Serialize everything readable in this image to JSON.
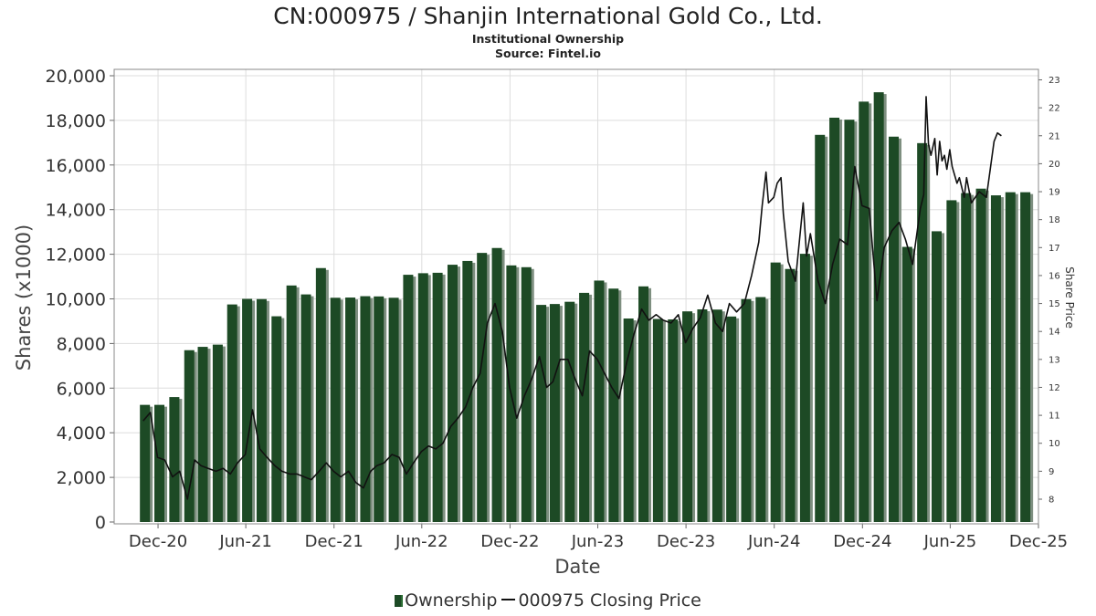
{
  "title": "CN:000975 / Shanjin International Gold Co., Ltd.",
  "subtitle": "Institutional Ownership",
  "source": "Source: Fintel.io",
  "legend": {
    "ownership": "Ownership",
    "price": "000975 Closing Price"
  },
  "colors": {
    "bar": "#1d4a25",
    "bar_shadow": "#7e8f80",
    "line": "#111111",
    "grid": "#dddddd"
  },
  "chart_data": {
    "type": "bar",
    "xlabel": "Date",
    "ylabel": "Shares (x1000)",
    "y2label": "Share Price",
    "ylim": [
      0,
      20000
    ],
    "y2lim": [
      7.2,
      23.2
    ],
    "yticks": [
      "0",
      "2,000",
      "4,000",
      "6,000",
      "8,000",
      "10,000",
      "12,000",
      "14,000",
      "16,000",
      "18,000",
      "20,000"
    ],
    "y2ticks": [
      "8",
      "9",
      "10",
      "11",
      "12",
      "13",
      "14",
      "15",
      "16",
      "17",
      "18",
      "19",
      "20",
      "21",
      "22",
      "23"
    ],
    "xlim": [
      "2020-09-01",
      "2025-12-01"
    ],
    "xticks": [
      {
        "label": "Dec-20",
        "date": "2020-12-01"
      },
      {
        "label": "Jun-21",
        "date": "2021-06-01"
      },
      {
        "label": "Dec-21",
        "date": "2021-12-01"
      },
      {
        "label": "Jun-22",
        "date": "2022-06-01"
      },
      {
        "label": "Dec-22",
        "date": "2022-12-01"
      },
      {
        "label": "Jun-23",
        "date": "2023-06-01"
      },
      {
        "label": "Dec-23",
        "date": "2023-12-01"
      },
      {
        "label": "Jun-24",
        "date": "2024-06-01"
      },
      {
        "label": "Dec-24",
        "date": "2024-12-01"
      },
      {
        "label": "Jun-25",
        "date": "2025-06-01"
      },
      {
        "label": "Dec-25",
        "date": "2025-12-01"
      }
    ],
    "series": [
      {
        "name": "Ownership",
        "type": "bar",
        "dates": [
          "2020-10-31",
          "2020-11-30",
          "2020-12-31",
          "2021-01-31",
          "2021-02-28",
          "2021-03-31",
          "2021-04-30",
          "2021-05-31",
          "2021-06-30",
          "2021-07-31",
          "2021-08-31",
          "2021-09-30",
          "2021-10-31",
          "2021-11-30",
          "2021-12-31",
          "2022-01-31",
          "2022-02-28",
          "2022-03-31",
          "2022-04-30",
          "2022-05-31",
          "2022-06-30",
          "2022-07-31",
          "2022-08-31",
          "2022-09-30",
          "2022-10-31",
          "2022-11-30",
          "2022-12-31",
          "2023-01-31",
          "2023-02-28",
          "2023-03-31",
          "2023-04-30",
          "2023-05-31",
          "2023-06-30",
          "2023-07-31",
          "2023-08-31",
          "2023-09-30",
          "2023-10-31",
          "2023-11-30",
          "2023-12-31",
          "2024-01-31",
          "2024-02-29",
          "2024-03-31",
          "2024-04-30",
          "2024-05-31",
          "2024-06-30",
          "2024-07-31",
          "2024-08-31",
          "2024-09-30",
          "2024-10-31",
          "2024-11-30",
          "2024-12-31",
          "2025-01-31",
          "2025-02-28",
          "2025-03-31",
          "2025-04-30",
          "2025-05-31",
          "2025-06-30",
          "2025-07-31",
          "2025-08-31",
          "2025-09-30",
          "2025-10-31"
        ],
        "values": [
          5250,
          5250,
          5600,
          7700,
          7850,
          7950,
          9750,
          10000,
          9990,
          9220,
          10600,
          10200,
          11380,
          10050,
          10060,
          10120,
          10110,
          10050,
          11080,
          11150,
          11170,
          11530,
          11700,
          12060,
          12280,
          11500,
          11420,
          9730,
          9770,
          9870,
          10270,
          10820,
          10460,
          9120,
          10560,
          9100,
          9080,
          9440,
          9530,
          9520,
          9210,
          9990,
          10080,
          11630,
          11340,
          12020,
          17350,
          18120,
          18030,
          18840,
          19260,
          17270,
          12330,
          16980,
          13030,
          14420,
          14740,
          14940,
          14640,
          14780,
          14780
        ]
      },
      {
        "name": "000975 Closing Price",
        "type": "line",
        "points": [
          [
            "2020-10-31",
            10.8
          ],
          [
            "2020-11-15",
            11.1
          ],
          [
            "2020-11-30",
            9.5
          ],
          [
            "2020-12-15",
            9.4
          ],
          [
            "2020-12-31",
            8.8
          ],
          [
            "2021-01-15",
            9.0
          ],
          [
            "2021-01-31",
            8.0
          ],
          [
            "2021-02-15",
            9.4
          ],
          [
            "2021-02-28",
            9.2
          ],
          [
            "2021-03-15",
            9.1
          ],
          [
            "2021-03-31",
            9.0
          ],
          [
            "2021-04-15",
            9.1
          ],
          [
            "2021-04-30",
            8.9
          ],
          [
            "2021-05-15",
            9.3
          ],
          [
            "2021-05-31",
            9.6
          ],
          [
            "2021-06-15",
            11.2
          ],
          [
            "2021-06-30",
            9.8
          ],
          [
            "2021-07-15",
            9.5
          ],
          [
            "2021-07-31",
            9.2
          ],
          [
            "2021-08-15",
            9.0
          ],
          [
            "2021-08-31",
            8.9
          ],
          [
            "2021-09-15",
            8.9
          ],
          [
            "2021-09-30",
            8.8
          ],
          [
            "2021-10-15",
            8.7
          ],
          [
            "2021-10-31",
            9.0
          ],
          [
            "2021-11-15",
            9.3
          ],
          [
            "2021-11-30",
            9.0
          ],
          [
            "2021-12-15",
            8.8
          ],
          [
            "2021-12-31",
            9.0
          ],
          [
            "2022-01-15",
            8.6
          ],
          [
            "2022-01-31",
            8.4
          ],
          [
            "2022-02-15",
            9.0
          ],
          [
            "2022-02-28",
            9.2
          ],
          [
            "2022-03-15",
            9.3
          ],
          [
            "2022-03-31",
            9.6
          ],
          [
            "2022-04-15",
            9.5
          ],
          [
            "2022-04-30",
            8.9
          ],
          [
            "2022-05-15",
            9.3
          ],
          [
            "2022-05-31",
            9.7
          ],
          [
            "2022-06-15",
            9.9
          ],
          [
            "2022-06-30",
            9.8
          ],
          [
            "2022-07-15",
            10.0
          ],
          [
            "2022-07-31",
            10.6
          ],
          [
            "2022-08-15",
            10.9
          ],
          [
            "2022-08-31",
            11.3
          ],
          [
            "2022-09-15",
            12.0
          ],
          [
            "2022-09-30",
            12.5
          ],
          [
            "2022-10-15",
            14.3
          ],
          [
            "2022-10-31",
            15.0
          ],
          [
            "2022-11-15",
            14.0
          ],
          [
            "2022-11-30",
            12.0
          ],
          [
            "2022-12-15",
            10.9
          ],
          [
            "2022-12-31",
            11.7
          ],
          [
            "2023-01-15",
            12.3
          ],
          [
            "2023-01-31",
            13.1
          ],
          [
            "2023-02-15",
            12.0
          ],
          [
            "2023-02-28",
            12.2
          ],
          [
            "2023-03-15",
            13.0
          ],
          [
            "2023-03-31",
            13.0
          ],
          [
            "2023-04-15",
            12.3
          ],
          [
            "2023-04-30",
            11.7
          ],
          [
            "2023-05-15",
            13.3
          ],
          [
            "2023-05-31",
            13.0
          ],
          [
            "2023-06-15",
            12.5
          ],
          [
            "2023-06-30",
            12.0
          ],
          [
            "2023-07-15",
            11.6
          ],
          [
            "2023-07-31",
            12.9
          ],
          [
            "2023-08-15",
            13.9
          ],
          [
            "2023-08-31",
            14.8
          ],
          [
            "2023-09-15",
            14.4
          ],
          [
            "2023-09-30",
            14.6
          ],
          [
            "2023-10-15",
            14.4
          ],
          [
            "2023-10-31",
            14.3
          ],
          [
            "2023-11-15",
            14.6
          ],
          [
            "2023-11-30",
            13.6
          ],
          [
            "2023-12-15",
            14.1
          ],
          [
            "2023-12-31",
            14.5
          ],
          [
            "2024-01-15",
            15.3
          ],
          [
            "2024-01-31",
            14.3
          ],
          [
            "2024-02-15",
            14.0
          ],
          [
            "2024-02-29",
            15.0
          ],
          [
            "2024-03-15",
            14.7
          ],
          [
            "2024-03-31",
            15.0
          ],
          [
            "2024-04-15",
            16.0
          ],
          [
            "2024-04-30",
            17.2
          ],
          [
            "2024-05-07",
            18.5
          ],
          [
            "2024-05-15",
            19.7
          ],
          [
            "2024-05-20",
            18.6
          ],
          [
            "2024-05-31",
            18.8
          ],
          [
            "2024-06-07",
            19.3
          ],
          [
            "2024-06-15",
            19.5
          ],
          [
            "2024-06-20",
            18.2
          ],
          [
            "2024-06-30",
            16.5
          ],
          [
            "2024-07-15",
            15.8
          ],
          [
            "2024-07-31",
            18.6
          ],
          [
            "2024-08-07",
            16.7
          ],
          [
            "2024-08-15",
            17.5
          ],
          [
            "2024-08-31",
            15.8
          ],
          [
            "2024-09-15",
            15.0
          ],
          [
            "2024-09-30",
            16.4
          ],
          [
            "2024-10-15",
            17.3
          ],
          [
            "2024-10-31",
            17.1
          ],
          [
            "2024-11-15",
            19.9
          ],
          [
            "2024-11-30",
            18.5
          ],
          [
            "2024-12-15",
            18.4
          ],
          [
            "2024-12-31",
            15.1
          ],
          [
            "2025-01-15",
            17.0
          ],
          [
            "2025-01-31",
            17.6
          ],
          [
            "2025-02-15",
            17.9
          ],
          [
            "2025-02-28",
            17.3
          ],
          [
            "2025-03-15",
            16.4
          ],
          [
            "2025-03-31",
            18.4
          ],
          [
            "2025-04-07",
            18.9
          ],
          [
            "2025-04-12",
            22.4
          ],
          [
            "2025-04-17",
            20.7
          ],
          [
            "2025-04-22",
            20.3
          ],
          [
            "2025-04-30",
            20.9
          ],
          [
            "2025-05-05",
            19.6
          ],
          [
            "2025-05-10",
            20.8
          ],
          [
            "2025-05-15",
            20.1
          ],
          [
            "2025-05-20",
            20.3
          ],
          [
            "2025-05-25",
            19.8
          ],
          [
            "2025-05-31",
            20.5
          ],
          [
            "2025-06-05",
            19.9
          ],
          [
            "2025-06-15",
            19.3
          ],
          [
            "2025-06-20",
            19.5
          ],
          [
            "2025-06-30",
            18.8
          ],
          [
            "2025-07-05",
            19.5
          ],
          [
            "2025-07-15",
            18.6
          ],
          [
            "2025-07-31",
            19.0
          ],
          [
            "2025-08-15",
            18.8
          ],
          [
            "2025-08-31",
            20.8
          ],
          [
            "2025-09-07",
            21.1
          ],
          [
            "2025-09-15",
            21.0
          ]
        ]
      }
    ]
  }
}
